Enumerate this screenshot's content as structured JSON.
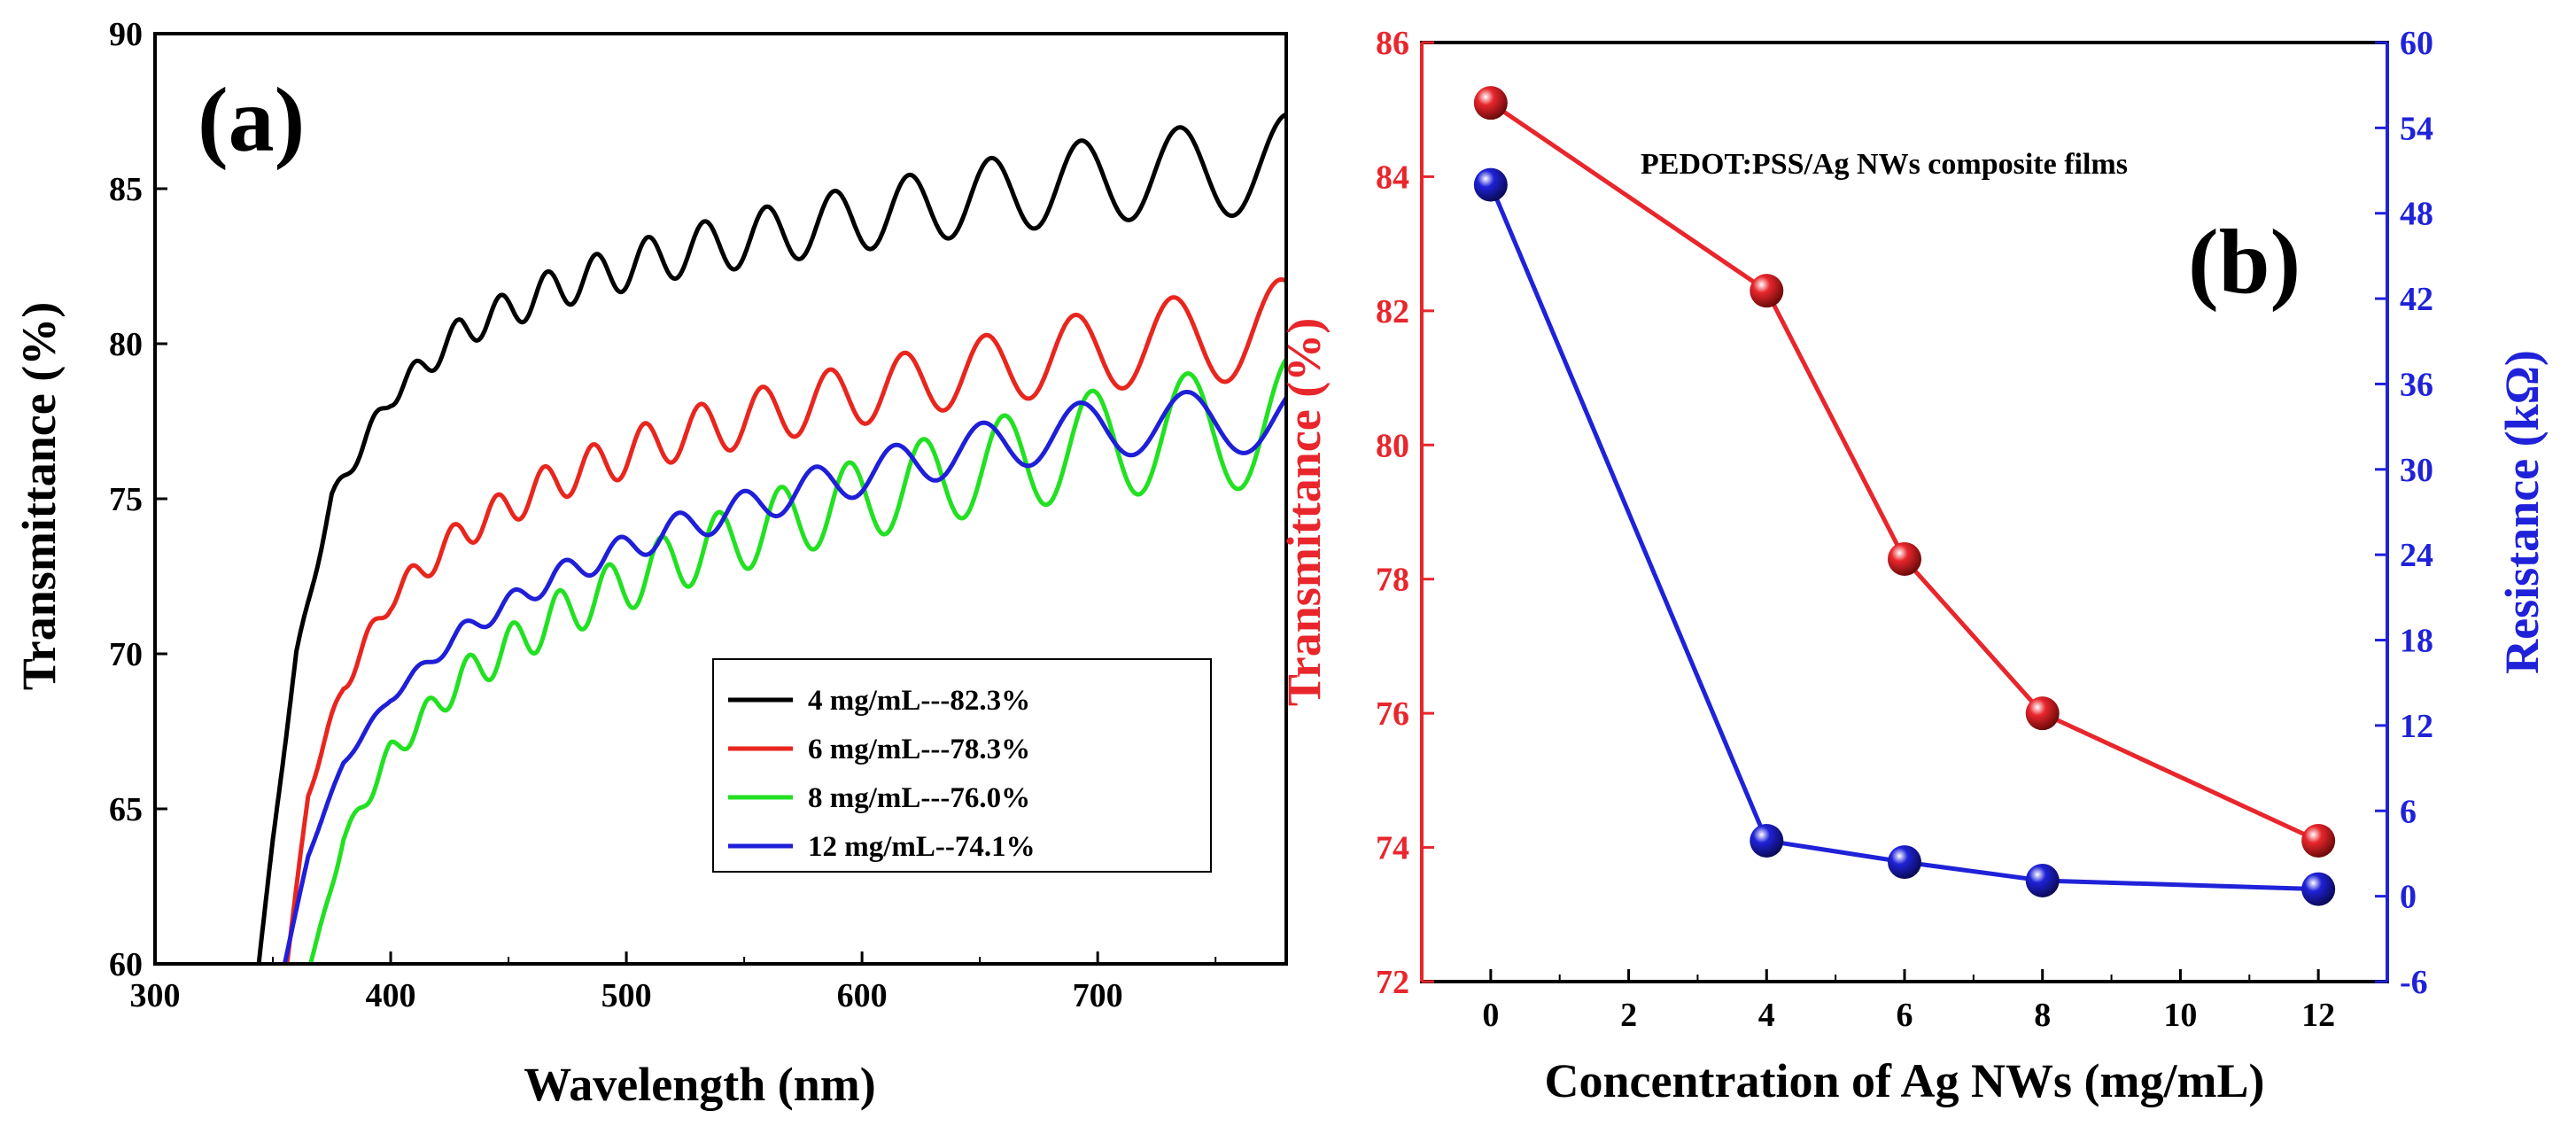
{
  "chart_data": [
    {
      "panel": "(a)",
      "type": "line",
      "xlabel": "Wavelength (nm)",
      "ylabel": "Transmittance (%)",
      "xlim": [
        300,
        780
      ],
      "ylim": [
        60,
        90
      ],
      "xticks": [
        300,
        400,
        500,
        600,
        700
      ],
      "yticks": [
        60,
        65,
        70,
        75,
        80,
        85,
        90
      ],
      "legend_position": "bottom-right",
      "series": [
        {
          "name": "4 mg/mL---82.3%",
          "color": "#000000",
          "start": 344,
          "base": [
            [
              344,
              60
            ],
            [
              350,
              64
            ],
            [
              360,
              70
            ],
            [
              375,
              75
            ],
            [
              400,
              78.3
            ],
            [
              430,
              80.4
            ],
            [
              470,
              81.8
            ],
            [
              520,
              82.9
            ],
            [
              580,
              83.8
            ],
            [
              640,
              84.6
            ],
            [
              700,
              85.3
            ],
            [
              780,
              85.8
            ]
          ],
          "amp": [
            [
              344,
              0
            ],
            [
              380,
              0.25
            ],
            [
              450,
              0.6
            ],
            [
              550,
              0.9
            ],
            [
              650,
              1.2
            ],
            [
              780,
              1.6
            ]
          ],
          "period": [
            [
              344,
              14
            ],
            [
              500,
              22
            ],
            [
              780,
              48
            ]
          ]
        },
        {
          "name": "6 mg/mL---78.3%",
          "color": "#e8261e",
          "start": 356,
          "base": [
            [
              356,
              60
            ],
            [
              365,
              65.5
            ],
            [
              380,
              69
            ],
            [
              400,
              71.8
            ],
            [
              430,
              73.9
            ],
            [
              470,
              75.6
            ],
            [
              520,
              77
            ],
            [
              580,
              78.1
            ],
            [
              640,
              79
            ],
            [
              700,
              79.8
            ],
            [
              780,
              80.5
            ]
          ],
          "amp": [
            [
              356,
              0
            ],
            [
              380,
              0.3
            ],
            [
              450,
              0.6
            ],
            [
              550,
              0.9
            ],
            [
              650,
              1.1
            ],
            [
              780,
              1.6
            ]
          ],
          "period": [
            [
              356,
              15
            ],
            [
              500,
              22
            ],
            [
              780,
              48
            ]
          ]
        },
        {
          "name": "8 mg/mL---76.0%",
          "color": "#22e022",
          "start": 366,
          "base": [
            [
              366,
              60
            ],
            [
              380,
              64
            ],
            [
              400,
              66.8
            ],
            [
              430,
              69.2
            ],
            [
              470,
              71.2
            ],
            [
              520,
              73
            ],
            [
              580,
              74.6
            ],
            [
              640,
              75.8
            ],
            [
              700,
              76.8
            ],
            [
              780,
              77.5
            ]
          ],
          "amp": [
            [
              366,
              0
            ],
            [
              390,
              0.3
            ],
            [
              450,
              0.7
            ],
            [
              550,
              1.1
            ],
            [
              650,
              1.5
            ],
            [
              780,
              2.1
            ]
          ],
          "period": [
            [
              366,
              14
            ],
            [
              500,
              22
            ],
            [
              780,
              46
            ]
          ]
        },
        {
          "name": "12 mg/mL--74.1%",
          "color": "#1f1fd8",
          "start": 355,
          "base": [
            [
              355,
              60
            ],
            [
              365,
              63.5
            ],
            [
              380,
              66.5
            ],
            [
              400,
              68.6
            ],
            [
              430,
              70.7
            ],
            [
              470,
              72.5
            ],
            [
              520,
              74
            ],
            [
              580,
              75.4
            ],
            [
              640,
              76.5
            ],
            [
              700,
              77.3
            ],
            [
              780,
              77.6
            ]
          ],
          "amp": [
            [
              355,
              0
            ],
            [
              400,
              0.15
            ],
            [
              450,
              0.35
            ],
            [
              550,
              0.55
            ],
            [
              650,
              0.8
            ],
            [
              780,
              1.1
            ]
          ],
          "period": [
            [
              355,
              16
            ],
            [
              500,
              24
            ],
            [
              780,
              52
            ]
          ]
        }
      ]
    },
    {
      "panel": "(b)",
      "type": "line",
      "title": "PEDOT:PSS/Ag NWs composite films",
      "xlabel": "Concentration of  Ag NWs (mg/mL)",
      "ylabel": "Transmittance (%)",
      "ylabel_right": "Resistance (kΩ)",
      "xlim": [
        -1,
        13
      ],
      "ylim": [
        72,
        86
      ],
      "ylim_right": [
        -6,
        60
      ],
      "xticks": [
        0,
        2,
        4,
        6,
        8,
        10,
        12
      ],
      "yticks": [
        72,
        74,
        76,
        78,
        80,
        82,
        84,
        86
      ],
      "yticks_right": [
        -6,
        0,
        6,
        12,
        18,
        24,
        30,
        36,
        42,
        48,
        54,
        60
      ],
      "x": [
        0,
        4,
        6,
        8,
        12
      ],
      "series": [
        {
          "name": "Transmittance",
          "axis": "left",
          "color": "#e8262c",
          "values": [
            85.1,
            82.3,
            78.3,
            76.0,
            74.1
          ]
        },
        {
          "name": "Resistance",
          "axis": "right",
          "color": "#1f22d8",
          "values": [
            50.0,
            3.9,
            2.4,
            1.1,
            0.5
          ]
        }
      ]
    }
  ]
}
